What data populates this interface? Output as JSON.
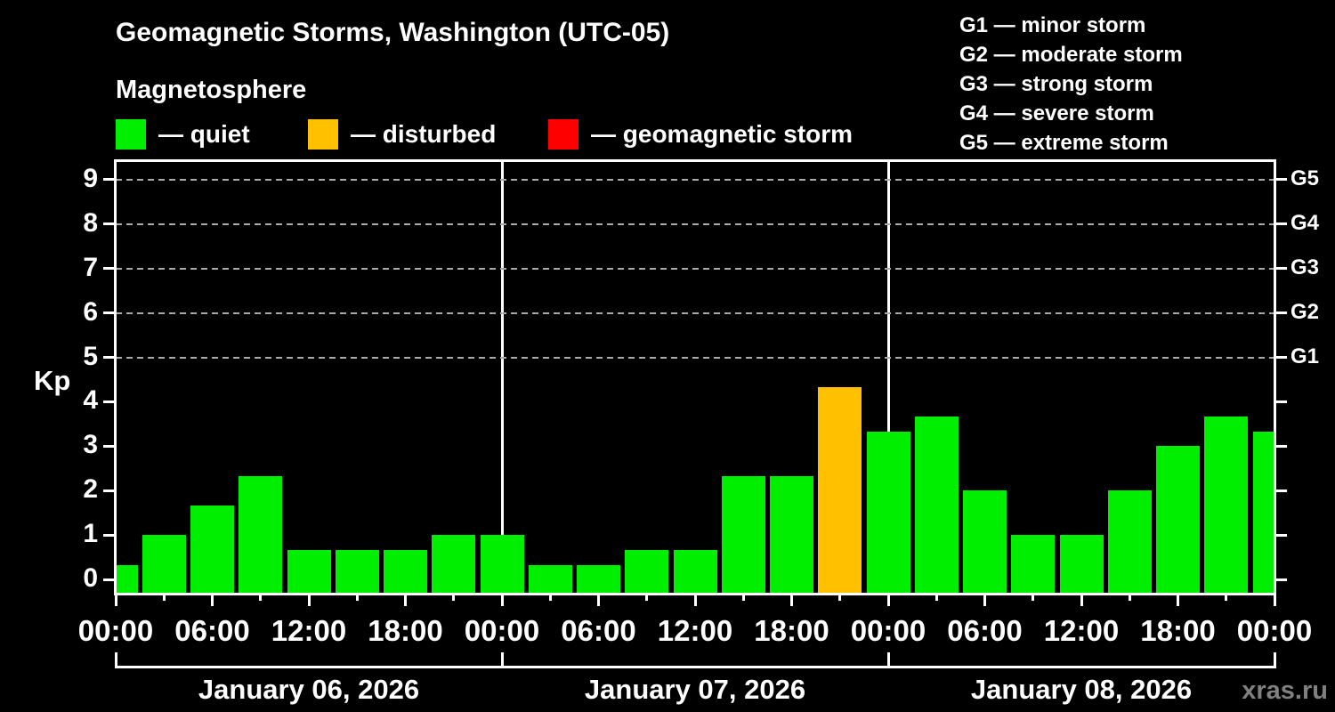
{
  "header": {
    "title": "Geomagnetic Storms, Washington (UTC-05)",
    "subtitle": "Magnetosphere"
  },
  "legend": {
    "items": [
      {
        "key": "quiet",
        "label": "— quiet",
        "color": "#00ee00"
      },
      {
        "key": "disturbed",
        "label": "— disturbed",
        "color": "#ffc000"
      },
      {
        "key": "geomagnetic-storm",
        "label": "— geomagnetic storm",
        "color": "#ff0000"
      }
    ]
  },
  "g_legend": [
    "G1 — minor storm",
    "G2 — moderate storm",
    "G3 — strong storm",
    "G4 — severe storm",
    "G5 — extreme storm"
  ],
  "watermark": "xras.ru",
  "chart_data": {
    "type": "bar",
    "title": "Geomagnetic Storms, Washington (UTC-05)",
    "subtitle": "Magnetosphere",
    "ylabel": "Kp",
    "ylim": [
      -0.32,
      9.44
    ],
    "y_ticks": [
      0,
      1,
      2,
      3,
      4,
      5,
      6,
      7,
      8,
      9
    ],
    "gridlines_at": [
      5,
      6,
      7,
      8,
      9
    ],
    "grid_style": "dashed",
    "right_axis_labels": [
      {
        "value": 5,
        "label": "G1"
      },
      {
        "value": 6,
        "label": "G2"
      },
      {
        "value": 7,
        "label": "G3"
      },
      {
        "value": 8,
        "label": "G4"
      },
      {
        "value": 9,
        "label": "G5"
      }
    ],
    "x_major_labels": [
      "00:00",
      "06:00",
      "12:00",
      "18:00",
      "00:00",
      "06:00",
      "12:00",
      "18:00",
      "00:00",
      "06:00",
      "12:00",
      "18:00",
      "00:00"
    ],
    "x_minor_step_hours": 3,
    "bar_width_hours": 3,
    "days": [
      {
        "label": "January 06, 2026"
      },
      {
        "label": "January 07, 2026"
      },
      {
        "label": "January 08, 2026"
      }
    ],
    "values": [
      0.33,
      1,
      1.67,
      2.33,
      0.67,
      0.67,
      0.67,
      1,
      1,
      0.33,
      0.33,
      0.67,
      0.67,
      2.33,
      2.33,
      4.33,
      3.33,
      3.67,
      2,
      1,
      1,
      2,
      3,
      3.67,
      3.33
    ],
    "color_rule": {
      "disturbed_min": 4,
      "storm_min": 5
    },
    "colors": {
      "quiet": "#00ee00",
      "disturbed": "#ffc000",
      "storm": "#ff0000",
      "axis": "#ffffff",
      "grid": "#aaaaaa",
      "background": "#000000",
      "watermark": "#808080"
    },
    "legend_position": "top"
  }
}
